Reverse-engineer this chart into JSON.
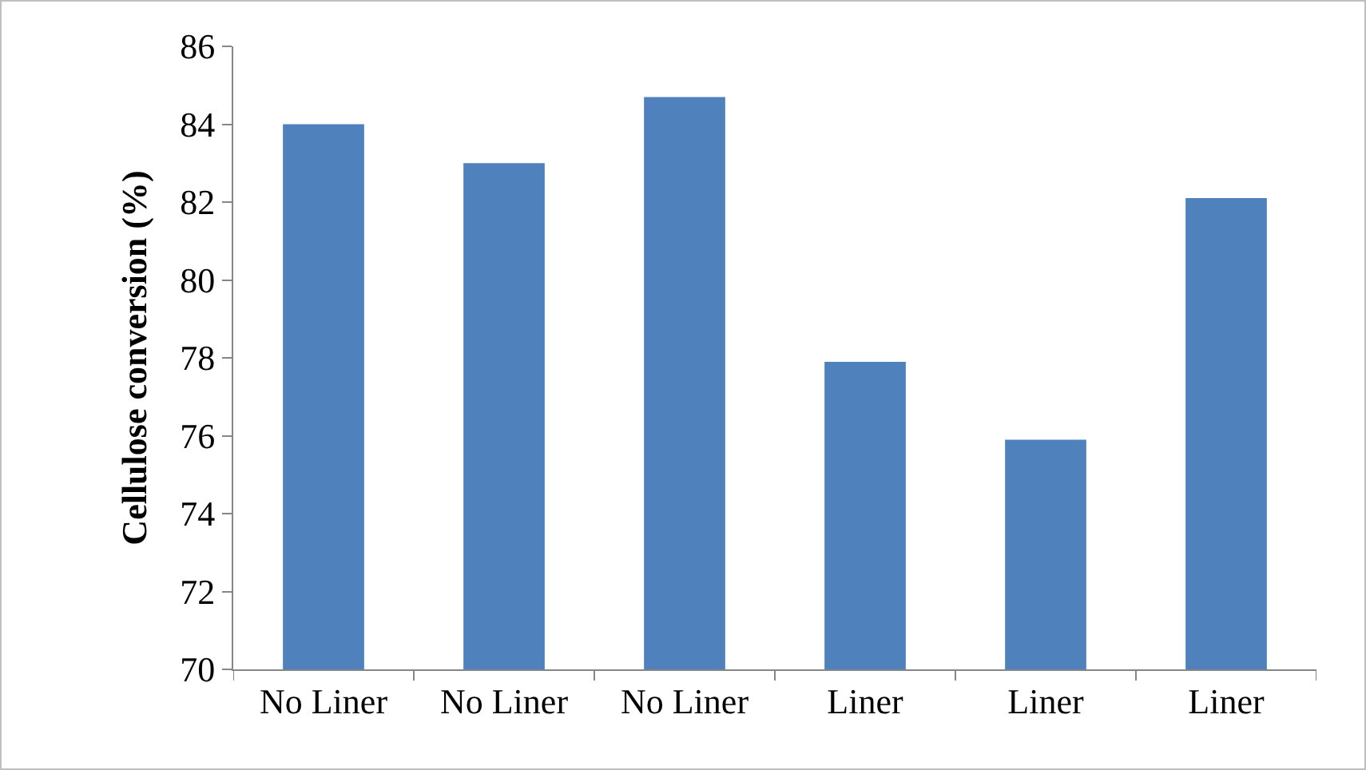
{
  "chart_data": {
    "type": "bar",
    "ylabel": "Cellulose conversion (%)",
    "categories": [
      "No Liner",
      "No Liner",
      "No Liner",
      "Liner",
      "Liner",
      "Liner"
    ],
    "values": [
      84.0,
      83.0,
      84.7,
      77.9,
      75.9,
      82.1
    ],
    "color": "#4f81bd",
    "ylim": [
      70,
      86
    ],
    "yticks": [
      70,
      72,
      74,
      76,
      78,
      80,
      82,
      84,
      86
    ],
    "grid": false
  }
}
